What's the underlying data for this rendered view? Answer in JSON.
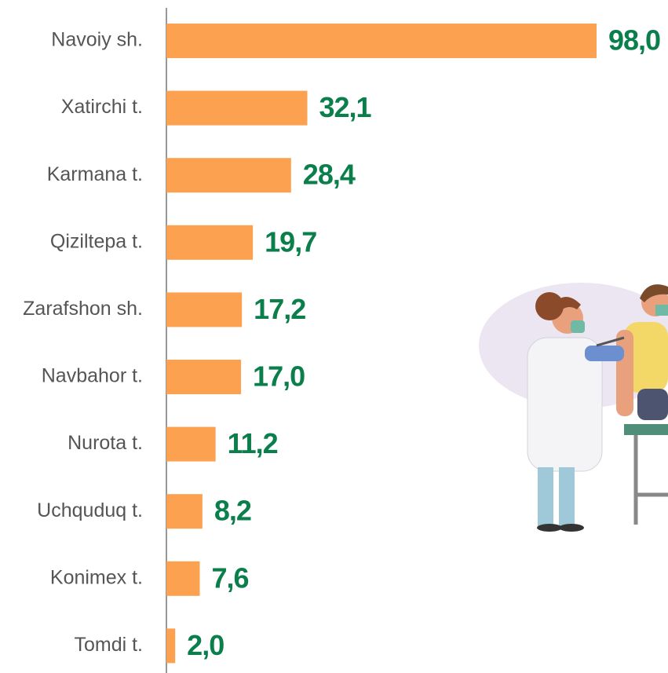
{
  "chart_data": {
    "type": "bar",
    "orientation": "horizontal",
    "categories": [
      "Navoiy sh.",
      "Xatirchi t.",
      "Karmana t.",
      "Qiziltepa t.",
      "Zarafshon sh.",
      "Navbahor t.",
      "Nurota t.",
      "Uchquduq t.",
      "Konimex t.",
      "Tomdi t."
    ],
    "values": [
      98.0,
      32.1,
      28.4,
      19.7,
      17.2,
      17.0,
      11.2,
      8.2,
      7.6,
      2.0
    ],
    "value_labels": [
      "98,0",
      "32,1",
      "28,4",
      "19,7",
      "17,2",
      "17,0",
      "11,2",
      "8,2",
      "7,6",
      "2,0"
    ],
    "color": "#fba150",
    "label_color": "#0b7f4b"
  }
}
